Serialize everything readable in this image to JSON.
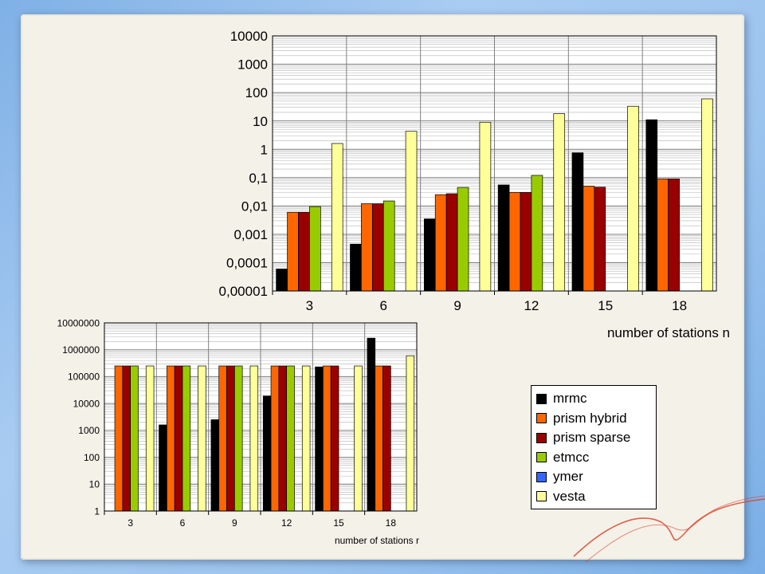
{
  "chart_data": [
    {
      "type": "bar",
      "yscale": "log",
      "ylim": [
        1e-05,
        10000
      ],
      "ytick_labels": [
        "10000",
        "1000",
        "100",
        "10",
        "1",
        "0,1",
        "0,01",
        "0,001",
        "0,0001",
        "0,00001"
      ],
      "categories": [
        "3",
        "6",
        "9",
        "12",
        "15",
        "18"
      ],
      "xlabel": "number of stations n",
      "grid": true,
      "series": [
        {
          "name": "mrmc",
          "color": "#000000",
          "values": [
            6e-05,
            0.00045,
            0.0035,
            0.055,
            0.75,
            11
          ]
        },
        {
          "name": "prism hybrid",
          "color": "#ff6600",
          "values": [
            0.006,
            0.012,
            0.025,
            0.03,
            0.05,
            0.09
          ]
        },
        {
          "name": "prism sparse",
          "color": "#990000",
          "values": [
            0.006,
            0.012,
            0.027,
            0.03,
            0.046,
            0.09
          ]
        },
        {
          "name": "etmcc",
          "color": "#99cc00",
          "values": [
            0.0095,
            0.015,
            0.045,
            0.12,
            null,
            null
          ]
        },
        {
          "name": "ymer",
          "color": "#3366ff",
          "values": [
            null,
            null,
            null,
            null,
            null,
            null
          ]
        },
        {
          "name": "vesta",
          "color": "#ffff99",
          "values": [
            1.6,
            4.3,
            9,
            18,
            33,
            60
          ]
        }
      ]
    },
    {
      "type": "bar",
      "yscale": "log",
      "ylim": [
        1,
        10000000
      ],
      "ytick_labels": [
        "10000000",
        "1000000",
        "100000",
        "10000",
        "1000",
        "100",
        "10",
        "1"
      ],
      "categories": [
        "3",
        "6",
        "9",
        "12",
        "15",
        "18"
      ],
      "xlabel": "number of stations r",
      "grid": true,
      "series": [
        {
          "name": "mrmc",
          "color": "#000000",
          "values": [
            null,
            1600,
            2500,
            19000,
            230000,
            2700000
          ]
        },
        {
          "name": "prism hybrid",
          "color": "#ff6600",
          "values": [
            250000,
            250000,
            250000,
            250000,
            250000,
            250000
          ]
        },
        {
          "name": "prism sparse",
          "color": "#990000",
          "values": [
            250000,
            250000,
            250000,
            250000,
            250000,
            250000
          ]
        },
        {
          "name": "etmcc",
          "color": "#99cc00",
          "values": [
            250000,
            250000,
            250000,
            250000,
            null,
            null
          ]
        },
        {
          "name": "ymer",
          "color": "#3366ff",
          "values": [
            null,
            null,
            null,
            null,
            null,
            null
          ]
        },
        {
          "name": "vesta",
          "color": "#ffff99",
          "values": [
            250000,
            250000,
            250000,
            250000,
            250000,
            600000
          ]
        }
      ]
    }
  ],
  "legend": {
    "placement": "bottom-right",
    "items": [
      {
        "label": "mrmc",
        "color": "#000000"
      },
      {
        "label": "prism hybrid",
        "color": "#ff6600"
      },
      {
        "label": "prism sparse",
        "color": "#990000"
      },
      {
        "label": "etmcc",
        "color": "#99cc00"
      },
      {
        "label": "ymer",
        "color": "#3366ff"
      },
      {
        "label": "vesta",
        "color": "#ffff99"
      }
    ]
  },
  "colors": {
    "plot_background": "#ffffff",
    "grid_major": "#808080",
    "grid_minor": "#b4b4b4",
    "paper": "#f4f1e9",
    "slide_background": "#9cc4ee",
    "decor_thread": "#d9482e"
  }
}
